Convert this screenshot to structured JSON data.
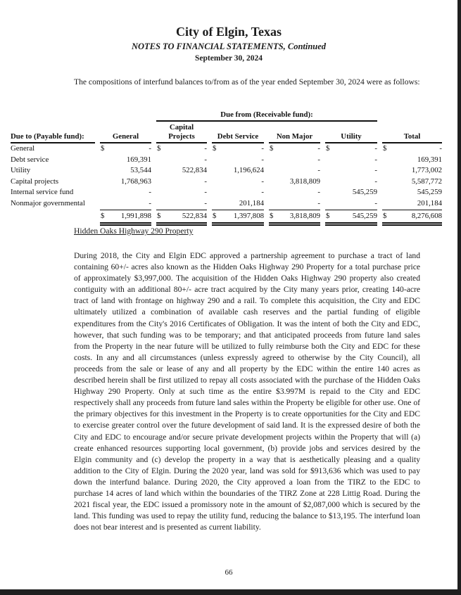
{
  "header": {
    "title": "City of Elgin, Texas",
    "subtitle": "NOTES TO FINANCIAL STATEMENTS, Continued",
    "date": "September 30, 2024"
  },
  "intro": "The compositions of interfund balances to/from as of the year ended September 30, 2024 were as follows:",
  "table": {
    "spanner_label": "Due from (Receivable fund):",
    "row_header_label": "Due to (Payable fund):",
    "dollar_sign": "$",
    "columns": [
      "General",
      "Capital\nProjects",
      "Debt Service",
      "Non Major",
      "Utility",
      "Total"
    ],
    "rows": [
      {
        "label": "General",
        "values": [
          "-",
          "-",
          "-",
          "-",
          "-",
          "-"
        ]
      },
      {
        "label": "Debt service",
        "values": [
          "169,391",
          "-",
          "-",
          "-",
          "-",
          "169,391"
        ]
      },
      {
        "label": "Utility",
        "values": [
          "53,544",
          "522,834",
          "1,196,624",
          "-",
          "-",
          "1,773,002"
        ]
      },
      {
        "label": "Capital projects",
        "values": [
          "1,768,963",
          "-",
          "-",
          "3,818,809",
          "-",
          "5,587,772"
        ]
      },
      {
        "label": "Internal service fund",
        "values": [
          "-",
          "-",
          "-",
          "-",
          "545,259",
          "545,259"
        ]
      },
      {
        "label": "Nonmajor governmental",
        "values": [
          "-",
          "-",
          "201,184",
          "-",
          "-",
          "201,184"
        ]
      }
    ],
    "total_row": {
      "values": [
        "1,991,898",
        "522,834",
        "1,397,808",
        "3,818,809",
        "545,259",
        "8,276,608"
      ]
    }
  },
  "section": {
    "heading": "Hidden Oaks Highway 290 Property",
    "paragraph": "During 2018, the City and Elgin EDC approved a partnership agreement to purchase a tract of land containing 60+/- acres also known as the Hidden Oaks Highway 290 Property for a total purchase price of approximately $3,997,000. The acquisition of the Hidden Oaks Highway 290 property also created contiguity with an additional 80+/- acre tract acquired by the City many years prior, creating 140-acre tract of land with frontage on highway 290 and a rail. To complete this acquisition, the City and EDC ultimately utilized a combination of available cash reserves and the partial funding of eligible expenditures from the City's 2016 Certificates of Obligation. It was the intent of both the City and EDC, however, that such funding was to be temporary; and that anticipated proceeds from future land sales from the Property in the near future will be utilized to fully reimburse both the City and EDC for these costs. In any and all circumstances (unless expressly agreed to otherwise by the City Council), all proceeds from the sale or lease of any and all property by the EDC within the entire 140 acres as described herein shall be first utilized to repay all costs associated with the purchase of the Hidden Oaks Highway 290 Property. Only at such time as the entire $3.997M is repaid to the City and EDC respectively shall any proceeds from future land sales within the Property be eligible for other use. One of the primary objectives for this investment in the Property is to create opportunities for the City and EDC to exercise greater control over the future development of said land. It is the expressed desire of both the City and EDC to encourage and/or secure private development projects within the Property that will (a) create enhanced resources supporting local government, (b) provide jobs and services desired by the Elgin community and (c) develop the property in a way that is aesthetically pleasing and a quality addition to the City of Elgin. During the 2020 year, land was sold for $913,636 which was used to pay down the interfund balance. During 2020, the City approved a loan from the TIRZ to the EDC to purchase 14 acres of land which within the boundaries of the TIRZ Zone at 228 Littig Road. During the 2021 fiscal year, the EDC issued a promissory note in the amount of $2,087,000 which is secured by the land. This funding was used to repay the utility fund, reducing the balance to $13,195. The interfund loan does not bear interest and is presented as current liability."
  },
  "footer": {
    "page_number": "66"
  }
}
